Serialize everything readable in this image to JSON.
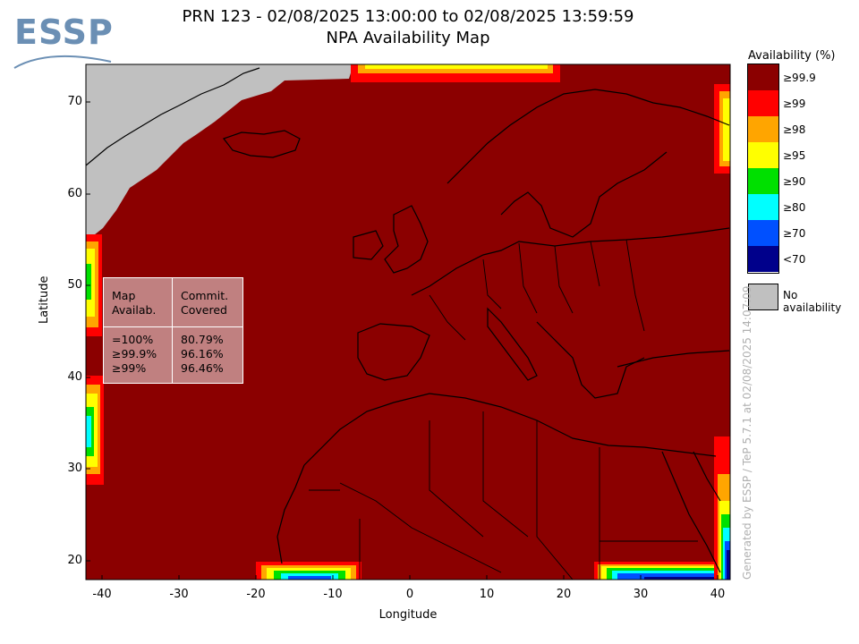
{
  "header": {
    "title_line1": "PRN 123 - 02/08/2025 13:00:00 to 02/08/2025 13:59:59",
    "title_line2": "NPA Availability Map"
  },
  "logo": {
    "text": "ESSP"
  },
  "axes": {
    "xlabel": "Longitude",
    "ylabel": "Latitude",
    "xticks": [
      "-40",
      "-30",
      "-20",
      "-10",
      "0",
      "10",
      "20",
      "30",
      "40"
    ],
    "yticks": [
      "70",
      "60",
      "50",
      "40",
      "30",
      "20"
    ]
  },
  "legend": {
    "title": "Availability (%)",
    "items": [
      {
        "label": "≥99.9",
        "color": "#8b0000"
      },
      {
        "label": "≥99",
        "color": "#ff0000"
      },
      {
        "label": "≥98",
        "color": "#ffa500"
      },
      {
        "label": "≥95",
        "color": "#ffff00"
      },
      {
        "label": "≥90",
        "color": "#00e000"
      },
      {
        "label": "≥80",
        "color": "#00ffff"
      },
      {
        "label": "≥70",
        "color": "#0050ff"
      },
      {
        "label": "<70",
        "color": "#00008b"
      }
    ],
    "no_availability": {
      "label": "No availability",
      "color": "#c0c0c0"
    }
  },
  "stats_table": {
    "col1_header": [
      "Map",
      "Availab."
    ],
    "col2_header": [
      "Commit.",
      "Covered"
    ],
    "rows": [
      {
        "level": "=100%",
        "covered": "80.79%"
      },
      {
        "level": "≥99.9%",
        "covered": "96.16%"
      },
      {
        "level": "≥99%",
        "covered": "96.46%"
      }
    ]
  },
  "credit": "Generated by ESSP / TeP 5.7.1 at 02/08/2025 14:07:09"
}
